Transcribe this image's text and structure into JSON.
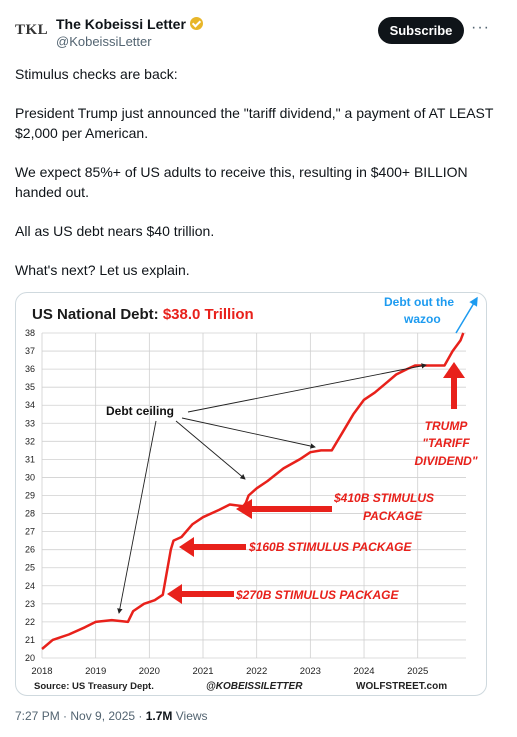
{
  "author": {
    "avatar_text": "TKL",
    "name": "The Kobeissi Letter",
    "handle": "@KobeissiLetter",
    "verified_color": "#e8b629"
  },
  "actions": {
    "subscribe_label": "Subscribe",
    "more_label": "···"
  },
  "tweet": {
    "paragraphs": [
      "Stimulus checks are back:",
      "President Trump just announced the \"tariff dividend,\" a payment of AT LEAST $2,000 per American.",
      "We expect 85%+ of US adults to receive this, resulting in $400+ BILLION handed out.",
      "All as US debt nears $40 trillion.",
      "What's next? Let us explain."
    ]
  },
  "meta": {
    "time": "7:27 PM · Nov 9, 2025 · ",
    "views": "1.7M",
    "views_label": " Views"
  },
  "chart_data": {
    "type": "line",
    "title": "US National Debt: ",
    "title_value": "$38.0 Trillion",
    "ylim": [
      20,
      38
    ],
    "y_ticks": [
      "20",
      "21",
      "22",
      "23",
      "24",
      "25",
      "26",
      "27",
      "28",
      "29",
      "30",
      "31",
      "32",
      "33",
      "34",
      "35",
      "36",
      "37",
      "38"
    ],
    "x_ticks": [
      "2018",
      "2019",
      "2020",
      "2021",
      "2022",
      "2023",
      "2024",
      "2025"
    ],
    "series": [
      {
        "color": "#e8211b",
        "x": [
          2018.0,
          2018.2,
          2018.5,
          2018.8,
          2019.0,
          2019.3,
          2019.6,
          2019.7,
          2019.9,
          2020.1,
          2020.25,
          2020.4,
          2020.45,
          2020.6,
          2020.8,
          2021.0,
          2021.3,
          2021.5,
          2021.75,
          2021.8,
          2021.85,
          2022.0,
          2022.2,
          2022.5,
          2022.8,
          2023.0,
          2023.2,
          2023.4,
          2023.6,
          2023.8,
          2024.0,
          2024.2,
          2024.4,
          2024.6,
          2024.8,
          2024.95,
          2025.0,
          2025.2,
          2025.5,
          2025.65,
          2025.8,
          2025.85
        ],
        "y": [
          20.5,
          21.0,
          21.3,
          21.7,
          22.0,
          22.1,
          22.0,
          22.6,
          23.0,
          23.2,
          23.5,
          26.0,
          26.5,
          26.7,
          27.4,
          27.8,
          28.2,
          28.5,
          28.4,
          28.6,
          29.0,
          29.4,
          29.8,
          30.5,
          31.0,
          31.4,
          31.5,
          31.5,
          32.5,
          33.5,
          34.3,
          34.7,
          35.2,
          35.7,
          36.0,
          36.2,
          36.2,
          36.2,
          36.2,
          37.0,
          37.6,
          38.0
        ]
      }
    ],
    "annotations": {
      "debt_ceiling": "Debt ceiling",
      "out_the_wazoo_1": "Debt out the",
      "out_the_wazoo_2": "wazoo",
      "trump_1": "TRUMP",
      "trump_2": "\"TARIFF",
      "trump_3": "DIVIDEND\"",
      "stim_410_1": "$410B STIMULUS",
      "stim_410_2": "PACKAGE",
      "stim_160": "$160B STIMULUS PACKAGE",
      "stim_270": "$270B STIMULUS PACKAGE"
    },
    "footer": {
      "source": "Source: US Treasury Dept.",
      "handle": "@KOBEISSILETTER",
      "site": "WOLFSTREET.com"
    },
    "grid": true,
    "colors": {
      "line": "#e8211b",
      "annot_red": "#e8211b",
      "wazoo_blue": "#1d9bf0"
    }
  }
}
